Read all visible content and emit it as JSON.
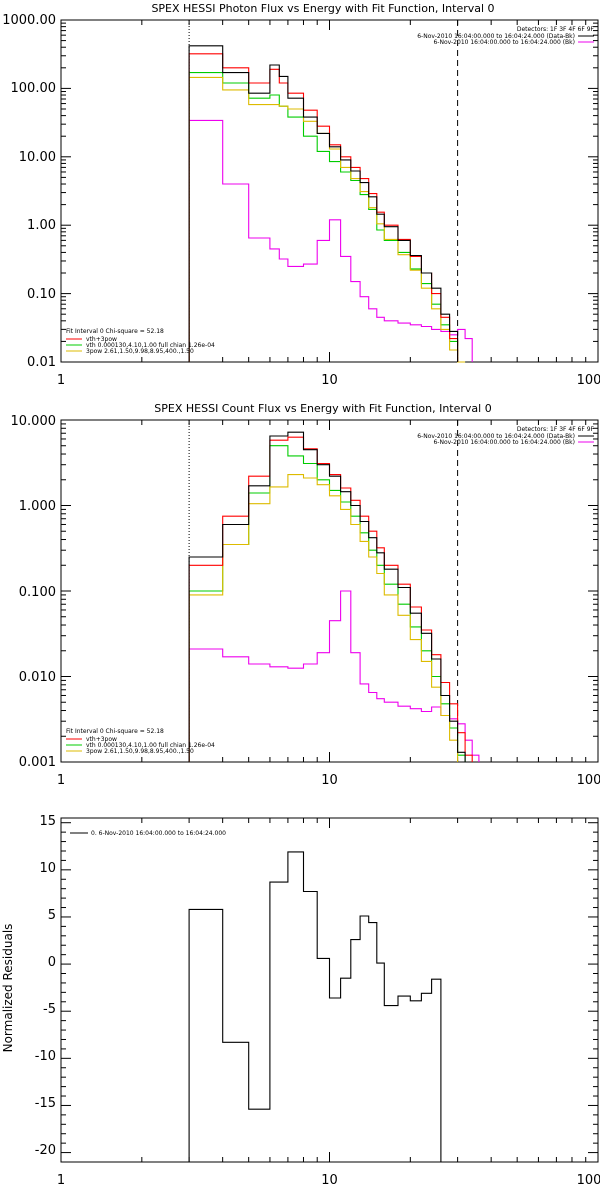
{
  "colors": {
    "data": "#000000",
    "total": "#ff0000",
    "vth": "#00cc00",
    "pow": "#ddbb00",
    "bkg": "#ee00ee"
  },
  "chart_data": [
    {
      "type": "line",
      "title": "SPEX HESSI Photon Flux vs Energy with Fit Function, Interval 0",
      "xscale": "log",
      "yscale": "log",
      "xlim": [
        1,
        100
      ],
      "ylim": [
        0.01,
        1000
      ],
      "xticks": [
        "1",
        "10",
        "100"
      ],
      "yticks": [
        "1000.00",
        "100.00",
        "10.00",
        "1.00",
        "0.10",
        "0.01"
      ],
      "vlines": [
        {
          "x": 3,
          "style": "dotted"
        },
        {
          "x": 30,
          "style": "dashed"
        }
      ],
      "legend_right": {
        "title": "Detectors: 1F 3F 4F 6F 9F",
        "entries": [
          {
            "label": "6-Nov-2010 16:04:00.000 to 16:04:24.000 (Data-Bk)",
            "color": "#000000"
          },
          {
            "label": "6-Nov-2010 16:04:00.000 to 16:04:24.000 (Bk)",
            "color": "#ee00ee"
          }
        ]
      },
      "legend_left": {
        "title": "Fit Interval 0   Chi-square = 52.18",
        "entries": [
          {
            "label": "vth+3pow",
            "color": "#ff0000"
          },
          {
            "label": "vth 0.000130,4.10,1.00   full chian 1.26e-04",
            "color": "#00cc00"
          },
          {
            "label": "3pow 2.61,1.50,9.98,8.95,400.,1.50",
            "color": "#ddbb00"
          }
        ]
      },
      "edges": [
        3,
        4,
        5,
        6,
        6.5,
        7,
        8,
        9,
        10,
        11,
        12,
        13,
        14,
        15,
        16,
        18,
        20,
        22,
        24,
        26,
        28,
        30,
        32,
        34,
        36
      ],
      "series": [
        {
          "name": "Data-Bk",
          "color": "#000000",
          "start": 0,
          "values": [
            420,
            170,
            85,
            220,
            150,
            72,
            38,
            22,
            14,
            9,
            6.2,
            4.2,
            2.6,
            1.45,
            0.95,
            0.6,
            0.36,
            0.2,
            0.12,
            0.05,
            0.028
          ]
        },
        {
          "name": "vth+3pow",
          "color": "#ff0000",
          "start": 0,
          "values": [
            320,
            200,
            120,
            190,
            120,
            85,
            48,
            28,
            15,
            10,
            7,
            4.8,
            2.9,
            1.55,
            1.0,
            0.62,
            0.35,
            0.2,
            0.1,
            0.045,
            0.022
          ]
        },
        {
          "name": "vth",
          "color": "#00cc00",
          "start": 0,
          "values": [
            170,
            120,
            72,
            80,
            55,
            38,
            20,
            12,
            8.5,
            6,
            4.5,
            2.8,
            1.7,
            0.85,
            0.6,
            0.4,
            0.23,
            0.14,
            0.07,
            0.035,
            0.02,
            0.01
          ]
        },
        {
          "name": "3pow",
          "color": "#ddbb00",
          "start": 0,
          "values": [
            145,
            95,
            58,
            58,
            55,
            50,
            33,
            22,
            13,
            7,
            4.8,
            3.1,
            1.8,
            1.05,
            0.62,
            0.37,
            0.22,
            0.12,
            0.06,
            0.03,
            0.015,
            0.01
          ]
        },
        {
          "name": "Bk",
          "color": "#ee00ee",
          "start": 0,
          "values": [
            34,
            4,
            0.65,
            0.45,
            0.32,
            0.25,
            0.27,
            0.6,
            1.2,
            0.35,
            0.15,
            0.09,
            0.06,
            0.045,
            0.04,
            0.037,
            0.035,
            0.033,
            0.03,
            0.028,
            0.025,
            0.03,
            0.022
          ]
        }
      ]
    },
    {
      "type": "line",
      "title": "SPEX HESSI Count Flux vs Energy with Fit Function, Interval 0",
      "xscale": "log",
      "yscale": "log",
      "xlim": [
        1,
        100
      ],
      "ylim": [
        0.001,
        10
      ],
      "xticks": [
        "1",
        "10",
        "100"
      ],
      "yticks": [
        "10.000",
        "1.000",
        "0.100",
        "0.010",
        "0.001"
      ],
      "vlines": [
        {
          "x": 3,
          "style": "dotted"
        },
        {
          "x": 30,
          "style": "dashed"
        }
      ],
      "legend_right": {
        "title": "Detectors: 1F 3F 4F 6F 9F",
        "entries": [
          {
            "label": "6-Nov-2010 16:04:00.000 to 16:04:24.000 (Data-Bk)",
            "color": "#000000"
          },
          {
            "label": "6-Nov-2010 16:04:00.000 to 16:04:24.000 (Bk)",
            "color": "#ee00ee"
          }
        ]
      },
      "legend_left": {
        "title": "Fit Interval 0   Chi-square = 52.18",
        "entries": [
          {
            "label": "vth+3pow",
            "color": "#ff0000"
          },
          {
            "label": "vth 0.000130,4.10,1.00   full chian 1.26e-04",
            "color": "#00cc00"
          },
          {
            "label": "3pow 2.61,1.50,9.98,8.95,400.,1.50",
            "color": "#ddbb00"
          }
        ]
      },
      "edges": [
        3,
        4,
        5,
        6,
        7,
        8,
        9,
        10,
        11,
        12,
        13,
        14,
        15,
        16,
        18,
        20,
        22,
        24,
        26,
        28,
        30,
        32,
        34,
        36
      ],
      "series": [
        {
          "name": "Data-Bk",
          "color": "#000000",
          "start": 0,
          "values": [
            0.25,
            0.6,
            1.7,
            6.5,
            7.2,
            4.5,
            3.0,
            2.2,
            1.45,
            1.0,
            0.65,
            0.42,
            0.28,
            0.18,
            0.11,
            0.055,
            0.032,
            0.016,
            0.006,
            0.003,
            0.0013
          ]
        },
        {
          "name": "vth+3pow",
          "color": "#ff0000",
          "start": 0,
          "values": [
            0.2,
            0.75,
            2.2,
            5.8,
            6.3,
            4.6,
            3.1,
            2.3,
            1.6,
            1.15,
            0.75,
            0.5,
            0.32,
            0.2,
            0.12,
            0.065,
            0.035,
            0.018,
            0.0085,
            0.0048,
            0.0022,
            0.0012
          ]
        },
        {
          "name": "vth",
          "color": "#00cc00",
          "start": 0,
          "values": [
            0.1,
            0.35,
            1.4,
            5.0,
            3.8,
            3.1,
            2.0,
            1.5,
            1.1,
            0.75,
            0.48,
            0.3,
            0.2,
            0.12,
            0.07,
            0.038,
            0.02,
            0.01,
            0.0048,
            0.0025,
            0.0012
          ]
        },
        {
          "name": "3pow",
          "color": "#ddbb00",
          "start": 0,
          "values": [
            0.09,
            0.35,
            1.05,
            1.65,
            2.3,
            2.1,
            1.75,
            1.3,
            0.9,
            0.6,
            0.38,
            0.25,
            0.16,
            0.09,
            0.052,
            0.027,
            0.015,
            0.0075,
            0.0035,
            0.0018
          ]
        },
        {
          "name": "Bk",
          "color": "#ee00ee",
          "start": 0,
          "values": [
            0.021,
            0.017,
            0.014,
            0.013,
            0.0125,
            0.014,
            0.019,
            0.045,
            0.1,
            0.019,
            0.0082,
            0.0065,
            0.0055,
            0.005,
            0.0045,
            0.0042,
            0.0039,
            0.0044,
            0.0035,
            0.0032,
            0.0028,
            0.0018,
            0.0012
          ]
        }
      ]
    },
    {
      "type": "line",
      "title": "",
      "ylabel": "Normalized Residuals",
      "xscale": "log",
      "yscale": "linear",
      "xlim": [
        1,
        100
      ],
      "ylim": [
        -21,
        15.5
      ],
      "xticks": [
        "1",
        "10",
        "100"
      ],
      "yticks": [
        "15",
        "10",
        "5",
        "0",
        "-5",
        "-10",
        "-15",
        "-20"
      ],
      "yticks_values": [
        15,
        10,
        5,
        0,
        -5,
        -10,
        -15,
        -20
      ],
      "legend": {
        "entries": [
          {
            "label": "0. 6-Nov-2010 16:04:00.000 to 16:04:24.000",
            "color": "#000000"
          }
        ]
      },
      "edges": [
        3,
        4,
        5,
        6,
        7,
        8,
        9,
        10,
        11,
        12,
        13,
        14,
        15,
        16,
        18,
        20,
        22,
        24,
        26,
        28,
        30
      ],
      "series": [
        {
          "name": "residuals",
          "color": "#000000",
          "values": [
            5.8,
            -8.3,
            -15.4,
            8.7,
            11.9,
            7.7,
            0.6,
            -3.6,
            -1.5,
            2.6,
            5.1,
            4.4,
            0.1,
            -4.4,
            -3.4,
            -3.9,
            -3.1,
            -1.6
          ]
        }
      ]
    }
  ]
}
